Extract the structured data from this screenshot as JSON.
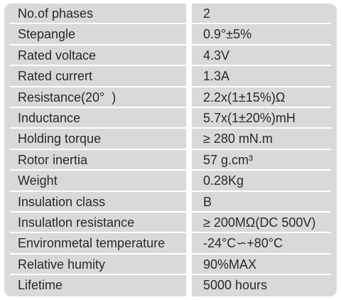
{
  "specifications": {
    "rows": [
      {
        "parameter": "No.of phases",
        "value": "2"
      },
      {
        "parameter": "Stepangle",
        "value": "0.9°±5%"
      },
      {
        "parameter": "Rated voltace",
        "value": "4.3V"
      },
      {
        "parameter": "Rated currert",
        "value": "1.3A"
      },
      {
        "parameter": "Resistance(20°  )",
        "value": "2.2x(1±15%)Ω"
      },
      {
        "parameter": "Inductance",
        "value": "5.7x(1±20%)mH"
      },
      {
        "parameter": "Holding torque",
        "value": "≥ 280 mN.m"
      },
      {
        "parameter": "Rotor inertia",
        "value": "57 g.cm³"
      },
      {
        "parameter": "Weight",
        "value": "0.28Kg"
      },
      {
        "parameter": "Insulation class",
        "value": "B"
      },
      {
        "parameter": "Insulatlon resistance",
        "value": "≥ 200MΩ(DC 500V)"
      },
      {
        "parameter": "Environmetal temperature",
        "value": "-24°C∽+80°C"
      },
      {
        "parameter": "Relative humity",
        "value": "90%MAX"
      },
      {
        "parameter": "Lifetime",
        "value": "5000 hours"
      }
    ]
  }
}
